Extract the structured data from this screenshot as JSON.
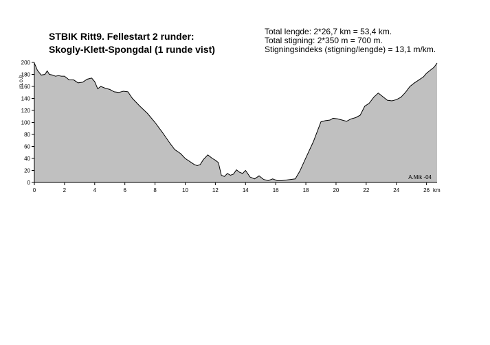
{
  "header": {
    "title_line1": "STBIK Ritt9. Fellestart 2 runder:",
    "title_line2": "Skogly-Klett-Spongdal (1 runde vist)",
    "info_line1": "Total lengde: 2*26,7 km = 53,4 km.",
    "info_line2": "Total stigning:  2*350 m = 700 m.",
    "info_line3": "Stigningsindeks (stigning/lengde) = 13,1 m/km."
  },
  "chart_data": {
    "type": "area",
    "title": "STBIK Ritt9. Fellestart 2 runder: Skogly-Klett-Spongdal (1 runde vist)",
    "xlabel": "km",
    "ylabel": "m.o.h.",
    "xlim": [
      0,
      26.7
    ],
    "ylim": [
      0,
      200
    ],
    "x_ticks": [
      0,
      2,
      4,
      6,
      8,
      10,
      12,
      14,
      16,
      18,
      20,
      22,
      24,
      26
    ],
    "y_ticks": [
      0,
      20,
      40,
      60,
      80,
      100,
      120,
      140,
      160,
      180,
      200
    ],
    "grid": false,
    "fill_color": "#c0c0c0",
    "line_color": "#000000",
    "credit": "A.Mik -04",
    "x": [
      0,
      0.2,
      0.45,
      0.7,
      0.85,
      1.0,
      1.2,
      1.4,
      1.6,
      1.8,
      2.0,
      2.3,
      2.6,
      2.9,
      3.2,
      3.5,
      3.8,
      4.0,
      4.2,
      4.4,
      4.7,
      5.0,
      5.3,
      5.6,
      5.9,
      6.2,
      6.5,
      7.0,
      7.5,
      8.0,
      8.5,
      9.0,
      9.3,
      9.7,
      10.0,
      10.3,
      10.6,
      10.8,
      11.0,
      11.2,
      11.5,
      11.8,
      12.0,
      12.2,
      12.4,
      12.6,
      12.8,
      13.0,
      13.2,
      13.4,
      13.6,
      13.8,
      14.0,
      14.3,
      14.6,
      14.9,
      15.2,
      15.5,
      15.8,
      16.1,
      16.4,
      16.7,
      17.0,
      17.3,
      17.6,
      18.0,
      18.5,
      19.0,
      19.3,
      19.6,
      19.8,
      20.1,
      20.4,
      20.7,
      21.0,
      21.3,
      21.6,
      21.9,
      22.2,
      22.5,
      22.8,
      23.1,
      23.4,
      23.7,
      24.0,
      24.3,
      24.6,
      24.9,
      25.2,
      25.5,
      25.8,
      26.0,
      26.3,
      26.5,
      26.7
    ],
    "y": [
      199,
      187,
      179,
      180,
      186,
      180,
      179,
      177,
      178,
      177,
      177,
      171,
      171,
      166,
      167,
      172,
      174,
      168,
      156,
      160,
      157,
      155,
      151,
      150,
      152,
      151,
      140,
      127,
      115,
      100,
      83,
      65,
      55,
      48,
      40,
      35,
      30,
      28,
      30,
      38,
      46,
      40,
      37,
      33,
      12,
      10,
      15,
      12,
      14,
      21,
      17,
      15,
      20,
      9,
      6,
      11,
      5,
      3,
      6,
      3,
      3,
      4,
      5,
      6,
      19,
      41,
      68,
      101,
      103,
      104,
      107,
      106,
      104,
      102,
      106,
      108,
      112,
      127,
      132,
      142,
      149,
      143,
      137,
      136,
      138,
      142,
      150,
      160,
      166,
      171,
      176,
      182,
      188,
      192,
      199
    ]
  }
}
